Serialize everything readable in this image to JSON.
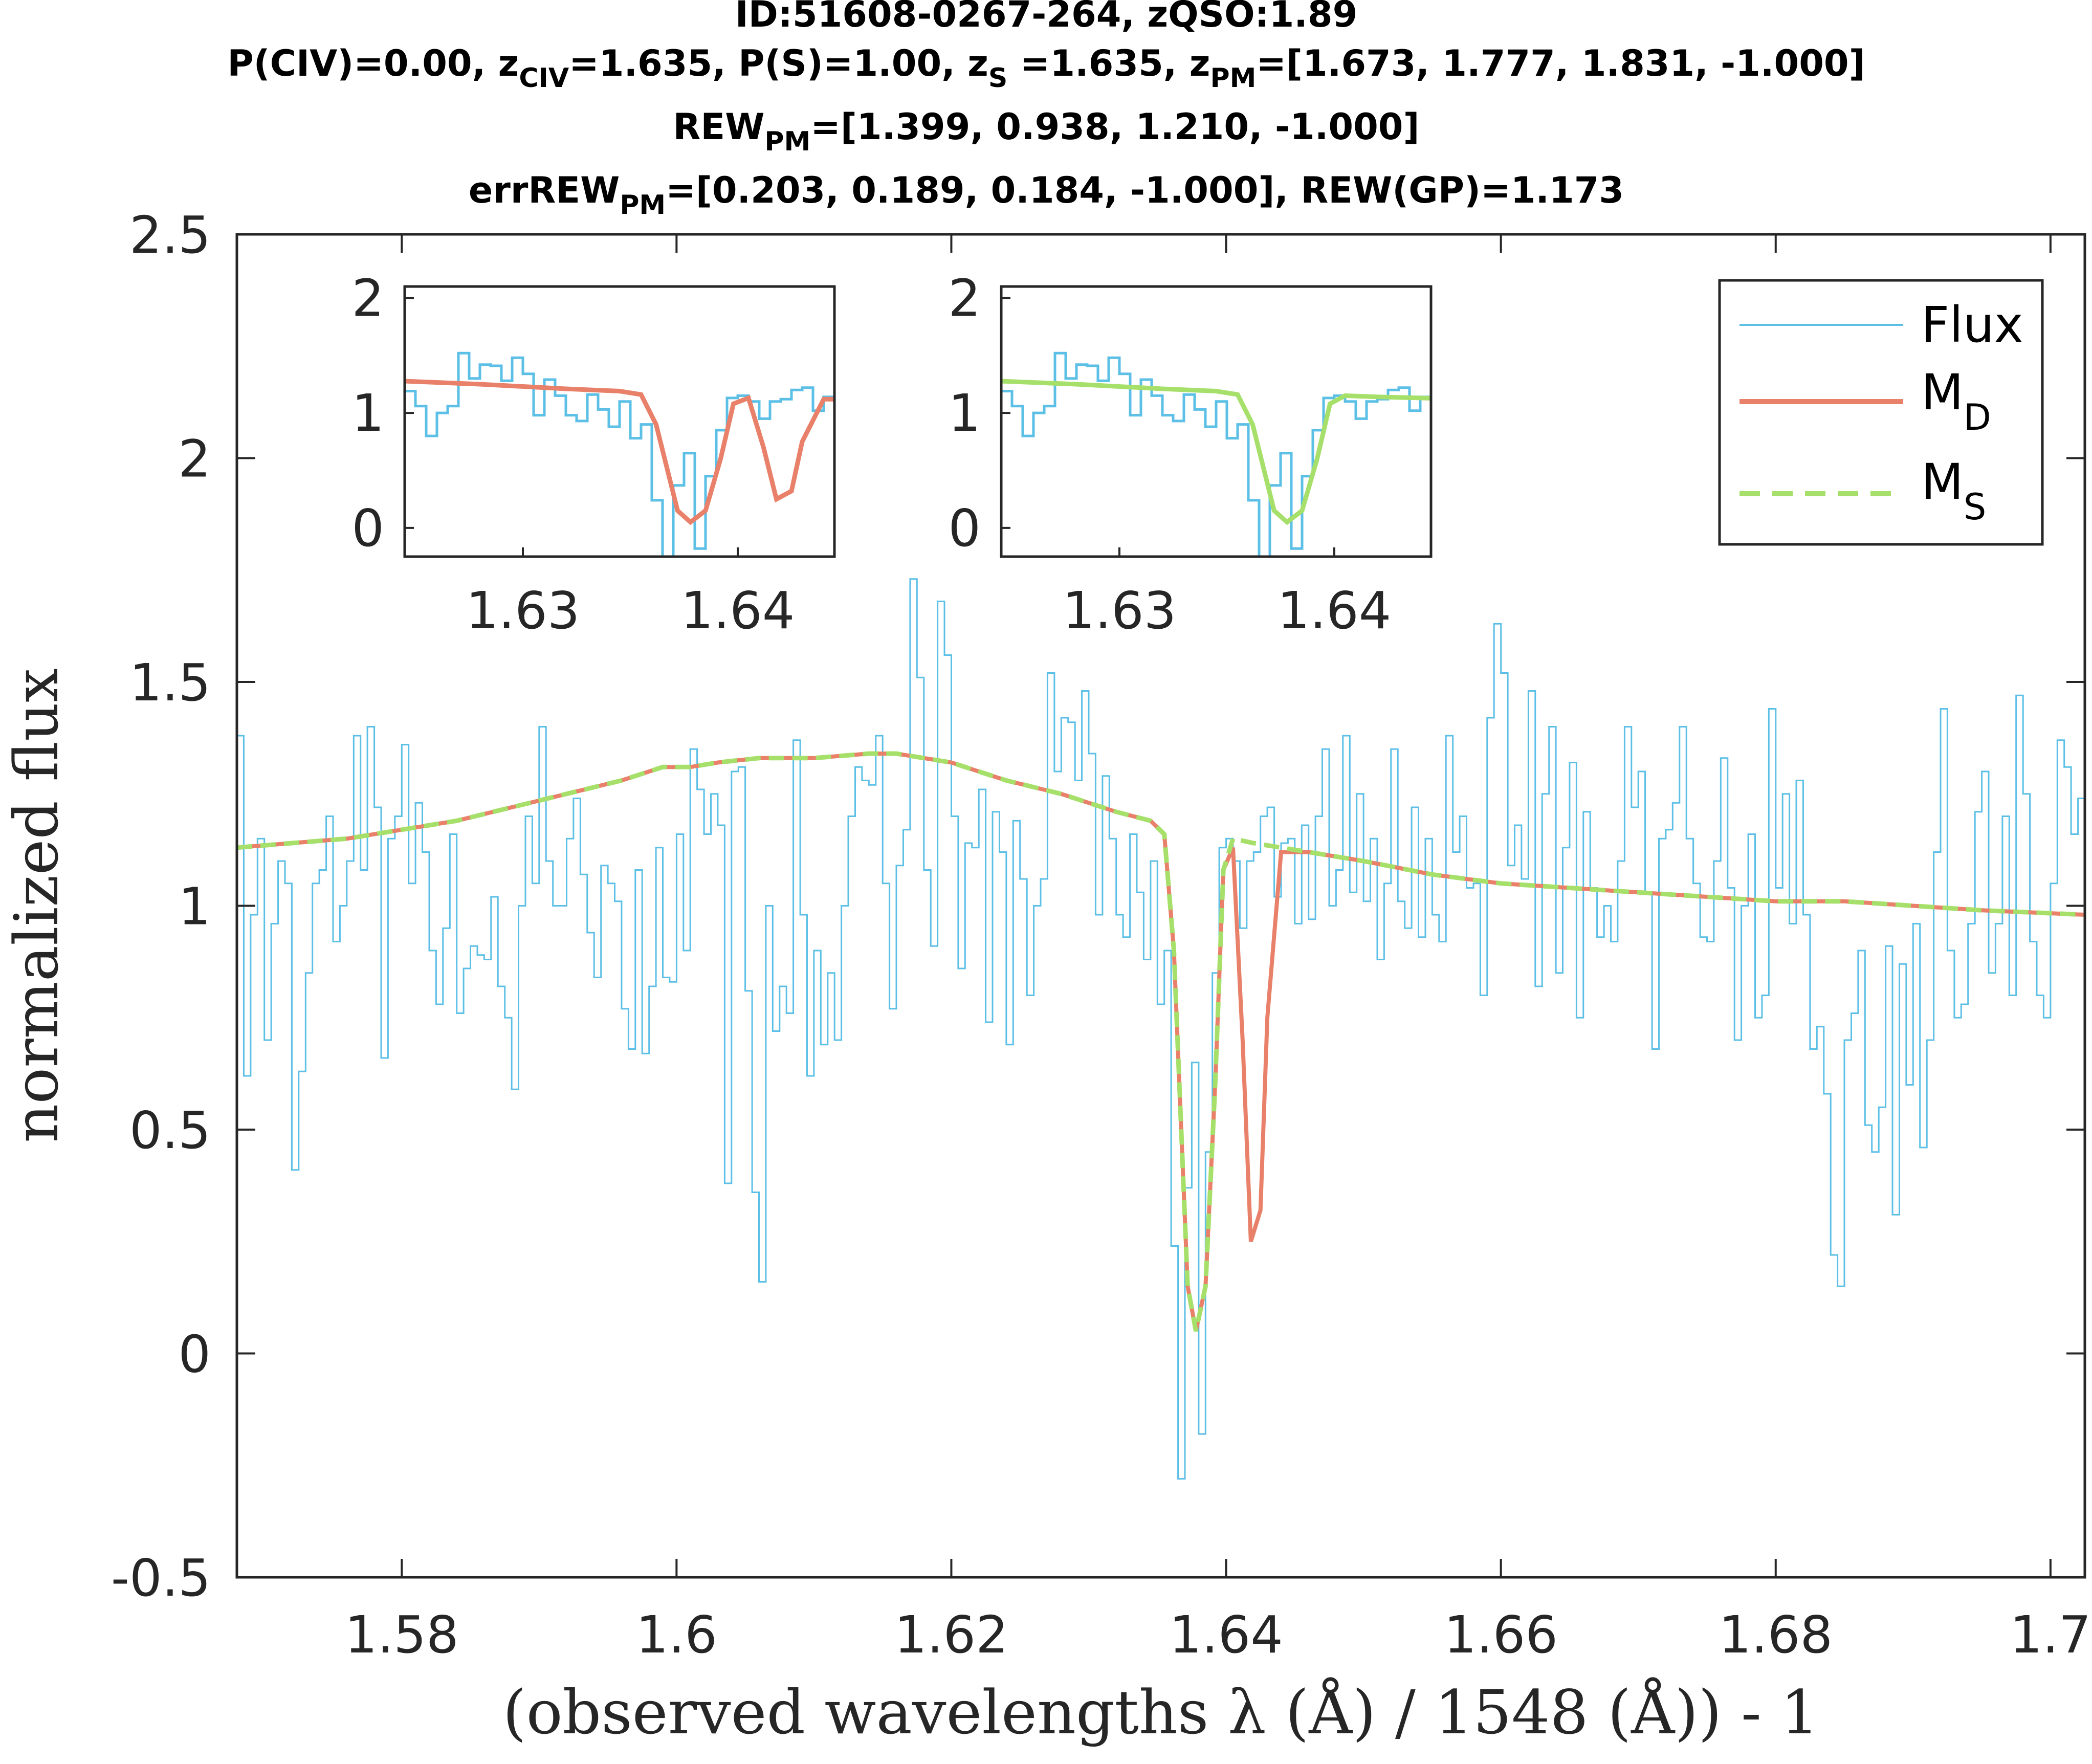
{
  "title": {
    "line1": "ID:51608-0267-264, zQSO:1.89",
    "line2": {
      "p_civ": "P(CIV)=0.00, z",
      "sub_civ": "CIV",
      "z_civ": "=1.635, P(S)=1.00, z",
      "sub_s": "S",
      "z_s": " =1.635, z",
      "sub_pm": "PM",
      "z_pm": "=[1.673, 1.777, 1.831, -1.000]"
    },
    "line3": {
      "pre": "REW",
      "sub": "PM",
      "post": "=[1.399, 0.938, 1.210, -1.000]"
    },
    "line4": {
      "pre": "errREW",
      "sub": "PM",
      "post": "=[0.203, 0.189, 0.184, -1.000], REW(GP)=1.173"
    }
  },
  "axes": {
    "xlabel": "(observed wavelengths λ (Å) / 1548 (Å)) - 1",
    "ylabel": "normalized flux"
  },
  "legend": {
    "flux": "Flux",
    "md_main": "M",
    "md_sub": "D",
    "ms_main": "M",
    "ms_sub": "S"
  },
  "colors": {
    "flux": "#5bbfe6",
    "md": "#e8806a",
    "ms": "#a6e06a",
    "axis": "#262626"
  },
  "chart_data": {
    "type": "line",
    "xlim": [
      1.568,
      1.7025
    ],
    "ylim": [
      -0.5,
      2.5
    ],
    "xticks": [
      1.58,
      1.6,
      1.62,
      1.64,
      1.66,
      1.68,
      1.7
    ],
    "xtick_labels": [
      "1.58",
      "1.6",
      "1.62",
      "1.64",
      "1.66",
      "1.68",
      "1.7"
    ],
    "yticks": [
      -0.5,
      0,
      0.5,
      1,
      1.5,
      2,
      2.5
    ],
    "ytick_labels": [
      "-0.5",
      "0",
      "0.5",
      "1",
      "1.5",
      "2",
      "2.5"
    ],
    "flux_step": {
      "x0": 1.568,
      "dx": 0.0005,
      "y": [
        1.38,
        0.62,
        0.98,
        1.15,
        0.7,
        0.96,
        1.1,
        1.05,
        0.41,
        0.63,
        0.85,
        1.05,
        1.08,
        1.2,
        0.92,
        1.0,
        1.1,
        1.38,
        1.08,
        1.4,
        1.22,
        0.66,
        1.15,
        1.2,
        1.36,
        1.05,
        1.23,
        1.12,
        0.9,
        0.78,
        0.95,
        1.16,
        0.76,
        0.86,
        0.91,
        0.89,
        0.88,
        1.02,
        0.82,
        0.75,
        0.59,
        1.0,
        1.2,
        1.05,
        1.4,
        1.1,
        1.0,
        1.0,
        1.15,
        1.24,
        1.07,
        0.94,
        0.84,
        1.09,
        1.05,
        1.01,
        0.77,
        0.68,
        1.08,
        0.67,
        0.82,
        1.13,
        0.84,
        0.83,
        1.16,
        0.9,
        1.35,
        1.26,
        1.16,
        1.25,
        1.18,
        0.38,
        1.3,
        1.31,
        0.81,
        0.36,
        0.16,
        1.0,
        0.72,
        0.82,
        0.76,
        1.37,
        0.98,
        0.62,
        0.9,
        0.69,
        0.85,
        0.7,
        1.0,
        1.2,
        1.31,
        1.28,
        1.27,
        1.38,
        1.05,
        0.77,
        1.09,
        1.17,
        1.73,
        1.51,
        1.08,
        0.91,
        1.68,
        1.56,
        1.2,
        0.86,
        1.14,
        1.13,
        1.26,
        0.74,
        1.21,
        1.12,
        0.69,
        1.19,
        1.06,
        0.8,
        1.0,
        1.06,
        1.52,
        1.3,
        1.42,
        1.41,
        1.28,
        1.48,
        1.34,
        0.98,
        1.29,
        1.15,
        0.98,
        0.93,
        1.16,
        1.03,
        0.88,
        1.1,
        0.78,
        0.9,
        0.24,
        -0.28,
        0.37,
        0.65,
        -0.18,
        0.45,
        0.85,
        1.13,
        1.15,
        1.1,
        0.95,
        1.1,
        1.12,
        1.2,
        1.22,
        1.02,
        1.14,
        1.15,
        0.96,
        1.18,
        0.97,
        1.2,
        1.35,
        1.0,
        1.08,
        1.38,
        1.03,
        1.25,
        1.01,
        1.15,
        0.88,
        1.05,
        1.35,
        1.01,
        0.95,
        1.22,
        0.93,
        1.15,
        0.98,
        0.92,
        1.38,
        1.12,
        1.2,
        1.04,
        1.05,
        0.8,
        1.42,
        1.63,
        1.52,
        1.09,
        1.18,
        1.06,
        1.48,
        0.82,
        1.25,
        1.4,
        0.85,
        1.13,
        1.32,
        0.75,
        1.21,
        1.04,
        0.93,
        1.0,
        0.92,
        1.1,
        1.4,
        1.22,
        1.3,
        1.03,
        0.68,
        1.15,
        1.17,
        1.23,
        1.4,
        1.15,
        1.05,
        0.93,
        0.92,
        1.1,
        1.33,
        1.04,
        0.7,
        1.0,
        1.16,
        0.75,
        0.8,
        1.44,
        1.04,
        1.25,
        0.96,
        1.28,
        0.98,
        0.68,
        0.73,
        0.58,
        0.22,
        0.15,
        0.7,
        0.76,
        0.9,
        0.51,
        0.45,
        0.55,
        0.91,
        0.31,
        0.87,
        0.6,
        0.96,
        0.46,
        0.7,
        1.12,
        1.44,
        0.9,
        0.75,
        0.78,
        0.96,
        1.21,
        1.3,
        0.85,
        0.96,
        1.2,
        0.8,
        1.47,
        1.25,
        0.92,
        0.8,
        0.75,
        1.05,
        1.37,
        1.31,
        1.16,
        1.24,
        0.94,
        1.18,
        0.9,
        1.48,
        1.22,
        0.95,
        1.08,
        1.47,
        1.2,
        1.11,
        1.47,
        0.92,
        1.24,
        1.04,
        0.86,
        1.43,
        1.02,
        1.05,
        1.11,
        1.14
      ]
    },
    "md": {
      "x": [
        1.568,
        1.572,
        1.576,
        1.58,
        1.584,
        1.588,
        1.592,
        1.596,
        1.599,
        1.601,
        1.603,
        1.606,
        1.61,
        1.614,
        1.616,
        1.62,
        1.624,
        1.628,
        1.632,
        1.6345,
        1.6355,
        1.6362,
        1.6368,
        1.6372,
        1.6378,
        1.6385,
        1.6392,
        1.6398,
        1.6405,
        1.6412,
        1.6418,
        1.6425,
        1.643,
        1.644,
        1.646,
        1.65,
        1.655,
        1.66,
        1.665,
        1.67,
        1.675,
        1.68,
        1.685,
        1.69,
        1.695,
        1.7025
      ],
      "y": [
        1.13,
        1.14,
        1.15,
        1.17,
        1.19,
        1.22,
        1.25,
        1.28,
        1.31,
        1.31,
        1.32,
        1.33,
        1.33,
        1.34,
        1.34,
        1.32,
        1.28,
        1.25,
        1.21,
        1.19,
        1.16,
        0.9,
        0.45,
        0.15,
        0.05,
        0.15,
        0.6,
        1.08,
        1.13,
        0.7,
        0.25,
        0.32,
        0.75,
        1.12,
        1.12,
        1.1,
        1.07,
        1.05,
        1.04,
        1.03,
        1.02,
        1.01,
        1.01,
        1.0,
        0.99,
        0.98
      ]
    },
    "ms": {
      "x": [
        1.568,
        1.572,
        1.576,
        1.58,
        1.584,
        1.588,
        1.592,
        1.596,
        1.599,
        1.601,
        1.603,
        1.606,
        1.61,
        1.614,
        1.616,
        1.62,
        1.624,
        1.628,
        1.632,
        1.6345,
        1.6355,
        1.6362,
        1.6368,
        1.6372,
        1.6378,
        1.6385,
        1.6392,
        1.6398,
        1.6405,
        1.642,
        1.644,
        1.646,
        1.65,
        1.655,
        1.66,
        1.665,
        1.67,
        1.675,
        1.68,
        1.685,
        1.69,
        1.695,
        1.7025
      ],
      "y": [
        1.13,
        1.14,
        1.15,
        1.17,
        1.19,
        1.22,
        1.25,
        1.28,
        1.31,
        1.31,
        1.32,
        1.33,
        1.33,
        1.34,
        1.34,
        1.32,
        1.28,
        1.25,
        1.21,
        1.19,
        1.16,
        0.9,
        0.45,
        0.15,
        0.05,
        0.15,
        0.6,
        1.08,
        1.15,
        1.14,
        1.13,
        1.12,
        1.1,
        1.07,
        1.05,
        1.04,
        1.03,
        1.02,
        1.01,
        1.01,
        1.0,
        0.99,
        0.98
      ]
    },
    "insets": [
      {
        "xlim": [
          1.6245,
          1.6445
        ],
        "ylim": [
          -0.25,
          2.1
        ],
        "xticks": [
          1.63,
          1.64
        ],
        "xtick_labels": [
          "1.63",
          "1.64"
        ],
        "yticks": [
          0,
          1,
          2
        ],
        "ytick_labels": [
          "0",
          "1",
          "2"
        ],
        "model": "md"
      },
      {
        "xlim": [
          1.6245,
          1.6445
        ],
        "ylim": [
          -0.25,
          2.1
        ],
        "xticks": [
          1.63,
          1.64
        ],
        "xtick_labels": [
          "1.63",
          "1.64"
        ],
        "yticks": [
          0,
          1,
          2
        ],
        "ytick_labels": [
          "0",
          "1",
          "2"
        ],
        "model": "ms"
      }
    ],
    "legend_position": "top-right"
  }
}
